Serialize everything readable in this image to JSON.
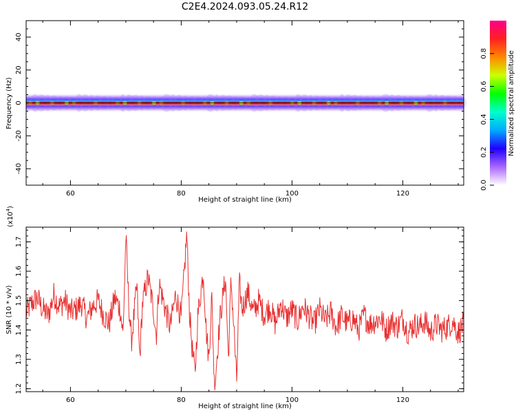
{
  "title": "C2E4.2024.093.05.24.R12",
  "chart_data": [
    {
      "type": "heatmap",
      "xlabel": "Height of straight line (km)",
      "ylabel": "Frequency (Hz)",
      "xlim": [
        52,
        131
      ],
      "ylim": [
        -50,
        50
      ],
      "xticks": [
        60,
        80,
        100,
        120
      ],
      "yticks": [
        -40,
        -20,
        0,
        20,
        40
      ],
      "band_center_hz": 0,
      "band_halfwidth_hz": 3,
      "colorbar": {
        "label": "Normalized spectral amplitude",
        "range": [
          0,
          1
        ],
        "ticks": [
          "0.0",
          "0.2",
          "0.4",
          "0.6",
          "0.8"
        ],
        "colors": [
          "#ffffff",
          "#aa66ff",
          "#2000ff",
          "#00aaff",
          "#00ffcc",
          "#00ff00",
          "#ccff00",
          "#ff8800",
          "#ff2020",
          "#ff0088"
        ]
      }
    },
    {
      "type": "line",
      "xlabel": "Height of straight line (km)",
      "ylabel": "SNR (10 * v/v)",
      "scale_label": "(x10",
      "scale_exp": "4",
      "scale_close": ")",
      "xlim": [
        52,
        131
      ],
      "ylim": [
        1.19,
        1.75
      ],
      "xticks": [
        60,
        80,
        100,
        120
      ],
      "yticks": [
        "1.2",
        "1.3",
        "1.4",
        "1.5",
        "1.6",
        "1.7"
      ],
      "color": "#e83030",
      "series": [
        {
          "x": [
            52,
            53,
            54,
            55,
            56,
            57,
            58,
            59,
            60,
            61,
            62,
            63,
            64,
            65,
            66,
            67,
            68,
            69,
            69.5,
            70,
            70.5,
            71,
            72,
            72.5,
            73,
            74,
            75,
            75.5,
            76,
            77,
            78,
            79,
            80,
            80.5,
            81,
            81.5,
            82,
            82.5,
            83,
            84,
            84.5,
            85,
            85.5,
            86,
            87,
            88,
            88.5,
            89,
            89.5,
            90,
            90.5,
            91,
            92,
            93,
            94,
            95,
            96,
            97,
            98,
            99,
            100,
            101,
            102,
            103,
            104,
            105,
            106,
            107,
            108,
            109,
            110,
            111,
            112,
            113,
            114,
            115,
            116,
            117,
            118,
            119,
            120,
            121,
            122,
            123,
            124,
            125,
            126,
            127,
            128,
            129,
            130,
            131
          ],
          "y": [
            1.46,
            1.49,
            1.51,
            1.47,
            1.45,
            1.52,
            1.48,
            1.5,
            1.46,
            1.47,
            1.49,
            1.44,
            1.48,
            1.5,
            1.45,
            1.42,
            1.51,
            1.47,
            1.38,
            1.72,
            1.5,
            1.36,
            1.55,
            1.3,
            1.49,
            1.58,
            1.47,
            1.38,
            1.56,
            1.48,
            1.41,
            1.52,
            1.44,
            1.58,
            1.73,
            1.46,
            1.33,
            1.25,
            1.45,
            1.6,
            1.4,
            1.3,
            1.52,
            1.2,
            1.44,
            1.58,
            1.3,
            1.57,
            1.41,
            1.22,
            1.56,
            1.47,
            1.53,
            1.46,
            1.5,
            1.45,
            1.48,
            1.42,
            1.49,
            1.44,
            1.47,
            1.43,
            1.48,
            1.45,
            1.42,
            1.47,
            1.43,
            1.46,
            1.41,
            1.45,
            1.42,
            1.44,
            1.4,
            1.45,
            1.42,
            1.43,
            1.44,
            1.4,
            1.43,
            1.41,
            1.44,
            1.39,
            1.42,
            1.41,
            1.43,
            1.39,
            1.42,
            1.4,
            1.41,
            1.43,
            1.39,
            1.42
          ]
        }
      ]
    }
  ]
}
